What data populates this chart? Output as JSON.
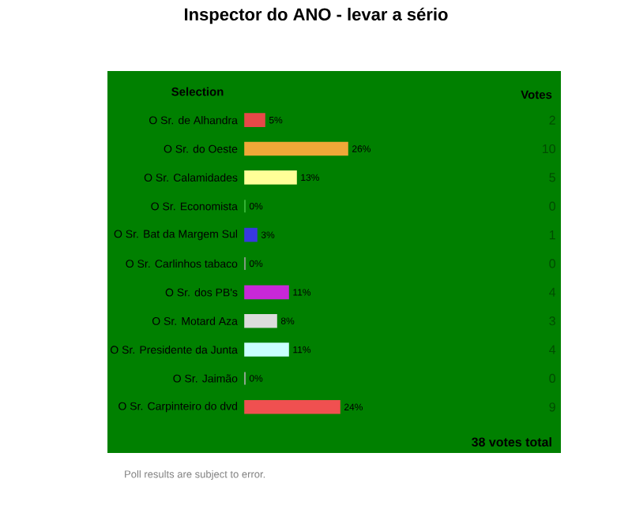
{
  "chart_data": {
    "type": "bar",
    "orientation": "horizontal",
    "title": "Inspector do ANO - levar a sério",
    "ylabel": "Selection",
    "categories": [
      "O Sr. de Alhandra",
      "O Sr. do Oeste",
      "O Sr. Calamidades",
      "O Sr. Economista",
      "O Sr. Bat da Margem Sul",
      "O Sr. Carlinhos tabaco",
      "O Sr. dos PB's",
      "O Sr. Motard Aza",
      "O Sr. Presidente da Junta",
      "O Sr. Jaimão",
      "O Sr. Carpinteiro do dvd"
    ],
    "values": [
      5,
      26,
      13,
      0,
      3,
      0,
      11,
      8,
      11,
      0,
      24
    ],
    "colors": [
      "#e84848",
      "#f0a838",
      "#ffff98",
      "#40c040",
      "#3838e0",
      "#a0a0a0",
      "#c828d8",
      "#dcdcdc",
      "#c8ffff",
      "#b0b0b0",
      "#f05050"
    ],
    "value_labels": [
      "5%",
      "26%",
      "13%",
      "0%",
      "3%",
      "0%",
      "11%",
      "8%",
      "11%",
      "0%",
      "24%"
    ],
    "tick_labels": "y",
    "annotations": [
      "Votes",
      "38 votes total",
      "Poll results are subject to error.",
      "2",
      "10",
      "5",
      "0",
      "1",
      "0",
      "4",
      "3",
      "4",
      "0",
      "9"
    ]
  }
}
